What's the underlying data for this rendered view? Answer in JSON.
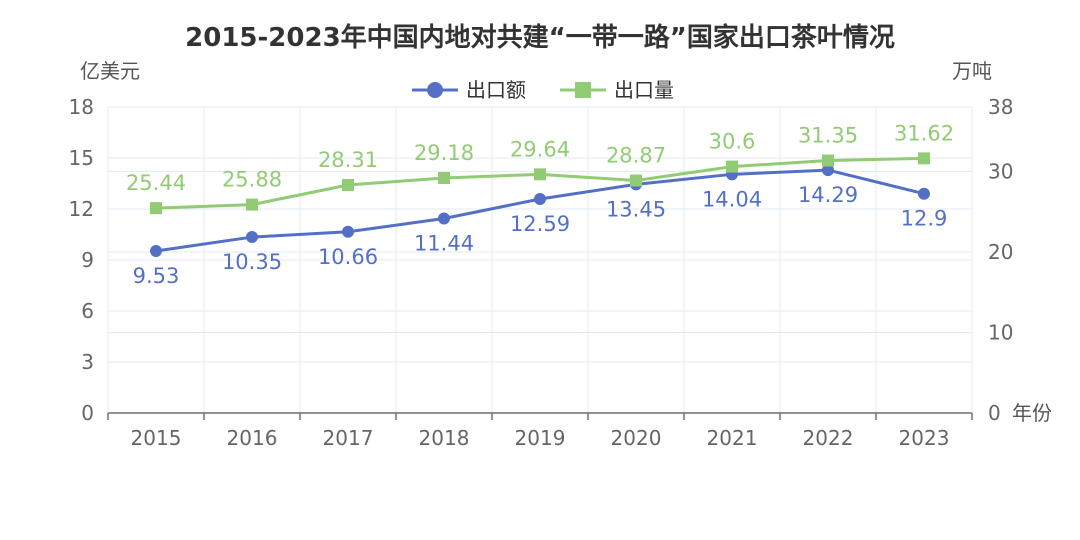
{
  "chart_data": {
    "type": "line",
    "title": "2015-2023年中国内地对共建“一带一路”国家出口茶叶情况",
    "x_axis_label": "年份",
    "y_left_label": "亿美元",
    "y_right_label": "万吨",
    "categories": [
      "2015",
      "2016",
      "2017",
      "2018",
      "2019",
      "2020",
      "2021",
      "2022",
      "2023"
    ],
    "y_left": {
      "ticks": [
        "0",
        "3",
        "6",
        "9",
        "12",
        "15",
        "18"
      ],
      "range": [
        0,
        18
      ]
    },
    "y_right": {
      "ticks": [
        "0",
        "10",
        "20",
        "30",
        "38"
      ],
      "range": [
        0,
        38
      ]
    },
    "grid": true,
    "legend_position": "top-center",
    "series": [
      {
        "name": "出口额",
        "axis": "left",
        "color": "#5470c6",
        "marker": "circle",
        "values": [
          9.53,
          10.35,
          10.66,
          11.44,
          12.59,
          13.45,
          14.04,
          14.29,
          12.9
        ],
        "labels": [
          "9.53",
          "10.35",
          "10.66",
          "11.44",
          "12.59",
          "13.45",
          "14.04",
          "14.29",
          "12.9"
        ]
      },
      {
        "name": "出口量",
        "axis": "right",
        "color": "#91cc75",
        "marker": "square",
        "values": [
          25.44,
          25.88,
          28.31,
          29.18,
          29.64,
          28.87,
          30.6,
          31.35,
          31.62
        ],
        "labels": [
          "25.44",
          "25.88",
          "28.31",
          "29.18",
          "29.64",
          "28.87",
          "30.6",
          "31.35",
          "31.62"
        ]
      }
    ]
  }
}
